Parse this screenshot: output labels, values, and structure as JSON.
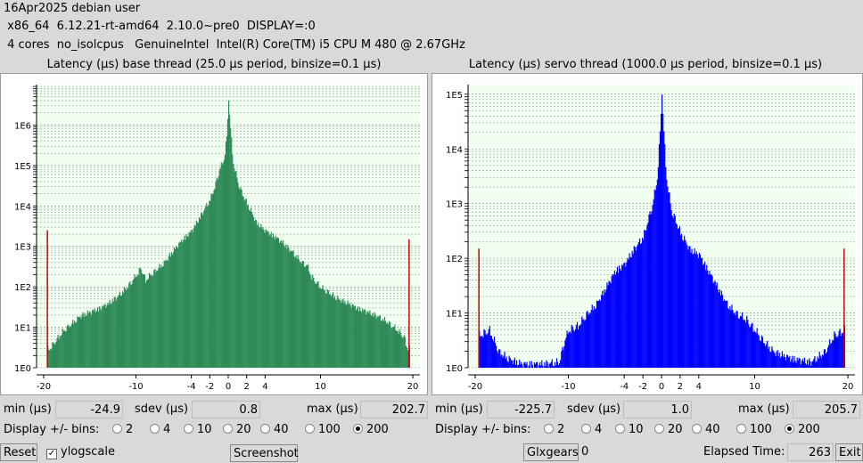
{
  "header": {
    "line1": "16Apr2025 debian user",
    "line2": " x86_64  6.12.21-rt-amd64  2.10.0~pre0  DISPLAY=:0",
    "line3": " 4 cores  no_isolcpus   GenuineIntel  Intel(R) Core(TM) i5 CPU M 480 @ 2.67GHz"
  },
  "colors": {
    "base": "#2e8b57",
    "servo": "#0000ff",
    "plot_bg": "#f0fff0",
    "limit_line": "#cc0000"
  },
  "chart_data": [
    {
      "type": "bar",
      "title": "Latency (µs) base thread (25.0 µs period, binsize=0.1 µs)",
      "xlabel": "",
      "ylabel": "",
      "log_y": true,
      "xlim": [
        -20,
        20
      ],
      "ylim": [
        1,
        10000000
      ],
      "x_ticks": [
        "-20",
        "-10",
        "-4",
        "-2",
        "0",
        "2",
        "4",
        "10",
        "20"
      ],
      "y_ticks": [
        "1E0",
        "1E1",
        "1E2",
        "1E3",
        "1E4",
        "1E5",
        "1E6"
      ],
      "color": "#2e8b57",
      "edge_spikes": [
        {
          "x": -19.6,
          "y": 2500
        },
        {
          "x": 19.6,
          "y": 1500
        }
      ],
      "envelope": [
        [
          -19.4,
          3
        ],
        [
          -18,
          8
        ],
        [
          -16,
          20
        ],
        [
          -14,
          30
        ],
        [
          -13,
          40
        ],
        [
          -12,
          60
        ],
        [
          -11,
          100
        ],
        [
          -10,
          200
        ],
        [
          -9.5,
          300
        ],
        [
          -9,
          150
        ],
        [
          -8.5,
          200
        ],
        [
          -8,
          250
        ],
        [
          -7,
          400
        ],
        [
          -6,
          800
        ],
        [
          -5,
          1500
        ],
        [
          -4,
          2500
        ],
        [
          -3,
          6000
        ],
        [
          -2,
          15000
        ],
        [
          -1.5,
          30000
        ],
        [
          -1,
          80000
        ],
        [
          -0.5,
          150000
        ],
        [
          -0.2,
          500000
        ],
        [
          0,
          5000000
        ],
        [
          0.2,
          800000
        ],
        [
          0.5,
          120000
        ],
        [
          1,
          40000
        ],
        [
          1.5,
          20000
        ],
        [
          2,
          12000
        ],
        [
          2.5,
          7000
        ],
        [
          3,
          4000
        ],
        [
          4,
          2500
        ],
        [
          5,
          1800
        ],
        [
          6,
          1200
        ],
        [
          7,
          700
        ],
        [
          8,
          400
        ],
        [
          8.5,
          350
        ],
        [
          9,
          180
        ],
        [
          10,
          100
        ],
        [
          11,
          70
        ],
        [
          12,
          50
        ],
        [
          13,
          40
        ],
        [
          14,
          30
        ],
        [
          15,
          25
        ],
        [
          16,
          20
        ],
        [
          17,
          15
        ],
        [
          18,
          10
        ],
        [
          19,
          6
        ],
        [
          19.4,
          3
        ]
      ]
    },
    {
      "type": "bar",
      "title": "Latency (µs) servo thread (1000.0 µs period, binsize=0.1 µs)",
      "xlabel": "",
      "ylabel": "",
      "log_y": true,
      "xlim": [
        -20,
        20
      ],
      "ylim": [
        1,
        150000
      ],
      "x_ticks": [
        "-20",
        "-10",
        "-4",
        "-2",
        "0",
        "2",
        "4",
        "10",
        "20"
      ],
      "y_ticks": [
        "1E0",
        "1E1",
        "1E2",
        "1E3",
        "1E4",
        "1E5"
      ],
      "color": "#0000ff",
      "edge_spikes": [
        {
          "x": -19.6,
          "y": 150
        },
        {
          "x": 19.6,
          "y": 150
        }
      ],
      "envelope": [
        [
          -19.6,
          4
        ],
        [
          -18.5,
          5
        ],
        [
          -17.5,
          2
        ],
        [
          -16.5,
          1.5
        ],
        [
          -15,
          1.2
        ],
        [
          -13,
          1.2
        ],
        [
          -11,
          1.3
        ],
        [
          -10.5,
          3
        ],
        [
          -10,
          5
        ],
        [
          -9,
          6
        ],
        [
          -8,
          10
        ],
        [
          -7,
          15
        ],
        [
          -6,
          30
        ],
        [
          -5,
          60
        ],
        [
          -4,
          80
        ],
        [
          -3,
          150
        ],
        [
          -2,
          250
        ],
        [
          -1.5,
          500
        ],
        [
          -1,
          1000
        ],
        [
          -0.5,
          3000
        ],
        [
          -0.2,
          20000
        ],
        [
          0,
          120000
        ],
        [
          0.2,
          20000
        ],
        [
          0.5,
          3000
        ],
        [
          1,
          800
        ],
        [
          2,
          300
        ],
        [
          3,
          150
        ],
        [
          4,
          120
        ],
        [
          5,
          60
        ],
        [
          6,
          30
        ],
        [
          7,
          15
        ],
        [
          8,
          10
        ],
        [
          9,
          8
        ],
        [
          10,
          5
        ],
        [
          11,
          3
        ],
        [
          12,
          2
        ],
        [
          14,
          1.5
        ],
        [
          16,
          1.3
        ],
        [
          17.5,
          2
        ],
        [
          18.5,
          4
        ],
        [
          19.6,
          5
        ]
      ]
    }
  ],
  "base_panel": {
    "min_label": "min (µs)",
    "min_value": "-24.9",
    "sdev_label": "sdev (µs)",
    "sdev_value": "0.8",
    "max_label": "max (µs)",
    "max_value": "202.7",
    "bins_label": "Display +/- bins:",
    "bins": [
      "2",
      "4",
      "10",
      "20",
      "40",
      "100",
      "200"
    ],
    "selected_bin": "200"
  },
  "servo_panel": {
    "min_label": "min (µs)",
    "min_value": "-225.7",
    "sdev_label": "sdev (µs)",
    "sdev_value": "1.0",
    "max_label": "max (µs)",
    "max_value": "205.7",
    "bins_label": "Display +/- bins:",
    "bins": [
      "2",
      "4",
      "10",
      "20",
      "40",
      "100",
      "200"
    ],
    "selected_bin": "200"
  },
  "footer": {
    "reset": "Reset",
    "ylogscale": "ylogscale",
    "ylogscale_checked": true,
    "screenshot": "Screenshot",
    "glxgears": "Glxgears",
    "glxgears_count": "0",
    "elapsed_label": "Elapsed Time:",
    "elapsed_value": "263",
    "exit": "Exit"
  }
}
